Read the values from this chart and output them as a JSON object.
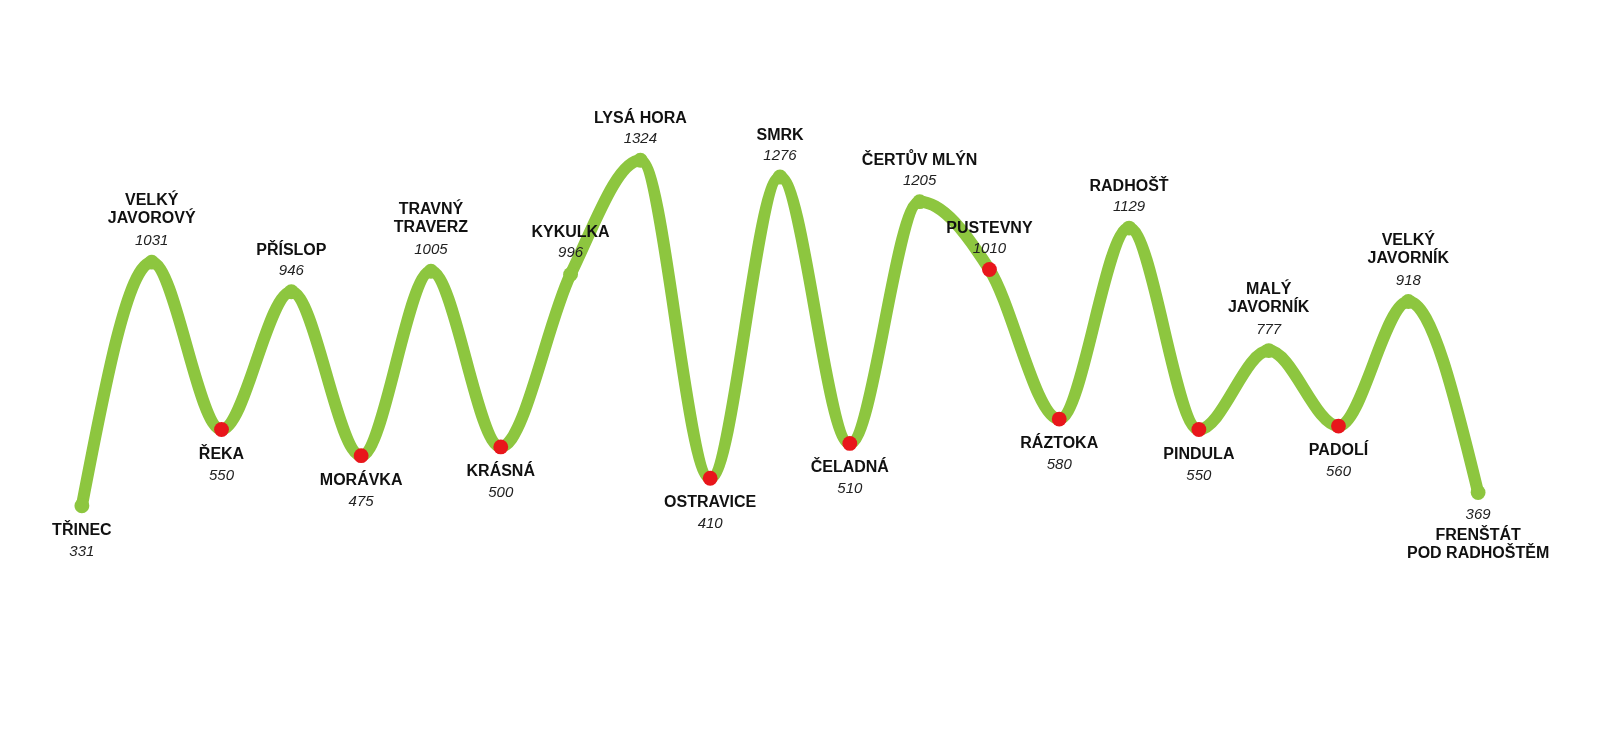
{
  "chart_data": {
    "type": "line",
    "categories": [
      "TŘINEC",
      "VELKÝ\nJAVOROVÝ",
      "ŘEKA",
      "PŘÍSLOP",
      "MORÁVKA",
      "TRAVNÝ\nTRAVERZ",
      "KRÁSNÁ",
      "KYKULKA",
      "LYSÁ HORA",
      "OSTRAVICE",
      "SMRK",
      "ČELADNÁ",
      "ČERTŮV MLÝN",
      "PUSTEVNY",
      "RÁZTOKA",
      "RADHOŠŤ",
      "PINDULA",
      "MALÝ\nJAVORNÍK",
      "PADOLÍ",
      "VELKÝ\nJAVORNÍK",
      "FRENŠTÁT\nPOD RADHOŠTĚM"
    ],
    "series": [
      {
        "color": "#8dc63f",
        "values": [
          331,
          1031,
          550,
          946,
          475,
          1005,
          500,
          996,
          1324,
          410,
          1276,
          510,
          1205,
          1010,
          580,
          1129,
          550,
          777,
          560,
          918,
          369
        ],
        "colors": [
          "#8dc63f",
          "#8dc63f",
          "#e8161b",
          "#8dc63f",
          "#e8161b",
          "#8dc63f",
          "#e8161b",
          "#8dc63f",
          "#8dc63f",
          "#e8161b",
          "#8dc63f",
          "#e8161b",
          "#8dc63f",
          "#e8161b",
          "#e8161b",
          "#8dc63f",
          "#e8161b",
          "#8dc63f",
          "#e8161b",
          "#8dc63f",
          "#8dc63f"
        ]
      }
    ],
    "data_labels": true,
    "marker": "circle",
    "line_style": "solid"
  }
}
